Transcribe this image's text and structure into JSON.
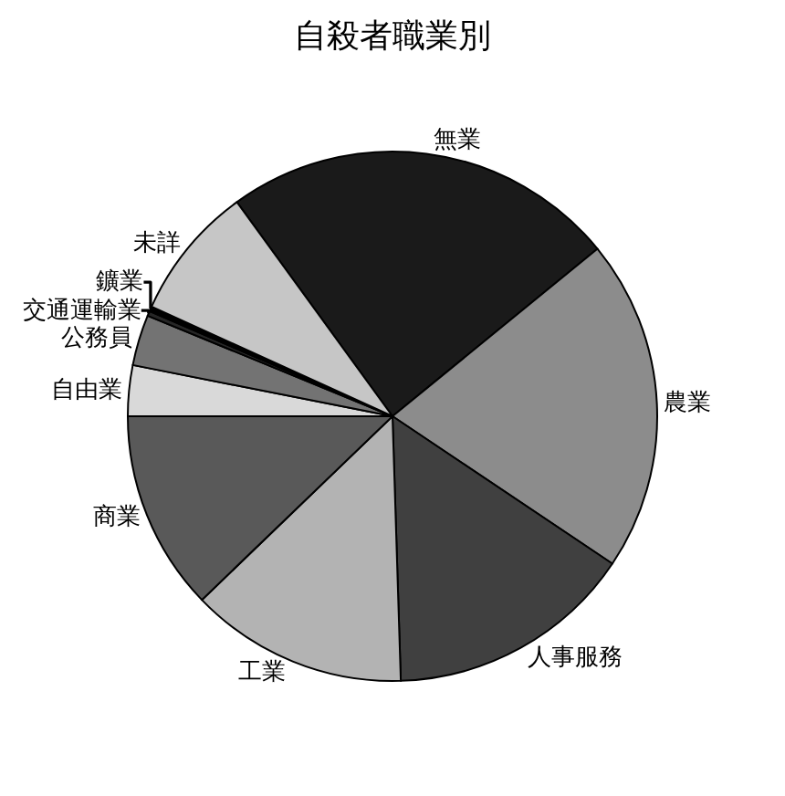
{
  "chart_data": {
    "type": "pie",
    "title": "自殺者職業別",
    "categories": [
      "無業",
      "農業",
      "人事服務",
      "工業",
      "商業",
      "自由業",
      "公務員",
      "交通運輸業",
      "鑛業",
      "未詳"
    ],
    "values": [
      24.1,
      20.3,
      15.1,
      13.3,
      12.2,
      3.1,
      3.1,
      0.3,
      0.3,
      8.2
    ],
    "colors": [
      "#1a1a1a",
      "#8c8c8c",
      "#404040",
      "#b3b3b3",
      "#595959",
      "#d9d9d9",
      "#737373",
      "#262626",
      "#000000",
      "#c6c6c6"
    ]
  }
}
